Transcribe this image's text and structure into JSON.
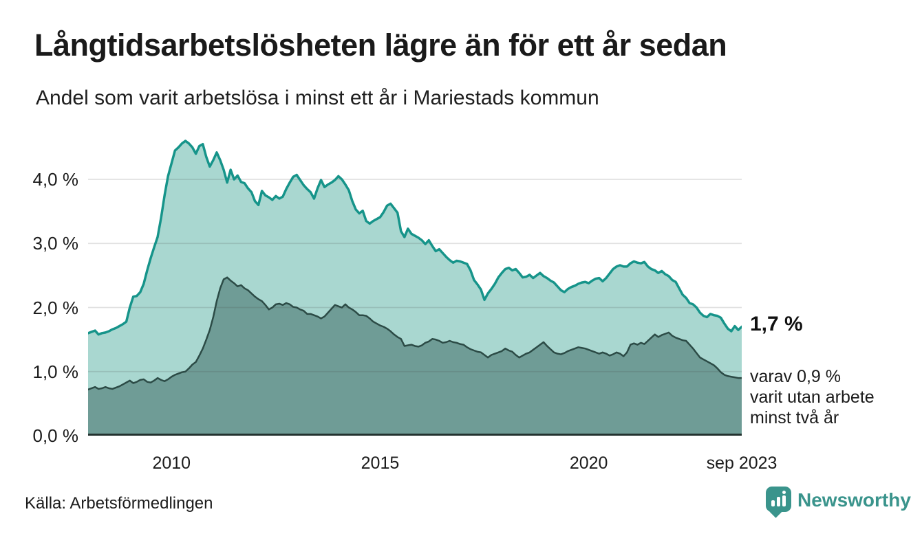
{
  "header": {
    "title": "Långtidsarbetslösheten lägre än för ett år sedan",
    "subtitle": "Andel som varit arbetslösa i minst ett år i Mariestads kommun"
  },
  "annotations": {
    "latest_value_label": "1,7 %",
    "note": "varav 0,9 %\nvarit utan arbete\nminst två år"
  },
  "footer": {
    "source": "Källa: Arbetsförmedlingen",
    "brand": "Newsworthy",
    "brand_color": "#3a948c",
    "brand_icon": "bar-chart-badge-icon"
  },
  "chart_data": {
    "type": "area",
    "title": "Långtidsarbetslösheten lägre än för ett år sedan",
    "subtitle": "Andel som varit arbetslösa i minst ett år i Mariestads kommun",
    "unit": "%",
    "xlabel": "",
    "ylabel": "",
    "ylim": [
      0,
      4.676
    ],
    "grid": true,
    "y_ticks": [
      {
        "label": "0,0 %",
        "value": 0
      },
      {
        "label": "1,0 %",
        "value": 1
      },
      {
        "label": "2,0 %",
        "value": 2
      },
      {
        "label": "3,0 %",
        "value": 3
      },
      {
        "label": "4,0 %",
        "value": 4
      }
    ],
    "x_ticks": [
      {
        "label": "2010",
        "index": 24
      },
      {
        "label": "2015",
        "index": 84
      },
      {
        "label": "2020",
        "index": 144
      },
      {
        "label": "sep 2023",
        "index": 188
      }
    ],
    "colors": {
      "gridline": "rgba(70,70,70,0.16)",
      "baseline": "#23322f"
    },
    "series": [
      {
        "name": "Arbetslösa minst ett år",
        "latest_label": "1,7 %",
        "latest_value": 1.7,
        "fill": "#a9d7d0",
        "stroke": "#16948a",
        "stroke_width": 3.5,
        "values": [
          1.6,
          1.62,
          1.64,
          1.58,
          1.6,
          1.61,
          1.63,
          1.66,
          1.68,
          1.71,
          1.74,
          1.78,
          2.0,
          2.17,
          2.18,
          2.24,
          2.37,
          2.58,
          2.77,
          2.94,
          3.1,
          3.4,
          3.75,
          4.05,
          4.25,
          4.45,
          4.5,
          4.56,
          4.6,
          4.56,
          4.5,
          4.4,
          4.52,
          4.55,
          4.35,
          4.2,
          4.3,
          4.42,
          4.3,
          4.15,
          3.95,
          4.15,
          4.0,
          4.06,
          3.96,
          3.94,
          3.86,
          3.8,
          3.66,
          3.6,
          3.82,
          3.75,
          3.72,
          3.68,
          3.74,
          3.7,
          3.73,
          3.85,
          3.95,
          4.04,
          4.07,
          3.99,
          3.91,
          3.85,
          3.8,
          3.7,
          3.86,
          3.99,
          3.88,
          3.92,
          3.95,
          3.99,
          4.05,
          4.0,
          3.92,
          3.83,
          3.66,
          3.53,
          3.47,
          3.51,
          3.35,
          3.31,
          3.35,
          3.38,
          3.41,
          3.49,
          3.59,
          3.62,
          3.55,
          3.48,
          3.19,
          3.1,
          3.23,
          3.15,
          3.12,
          3.09,
          3.05,
          2.99,
          3.05,
          2.96,
          2.88,
          2.91,
          2.85,
          2.79,
          2.74,
          2.7,
          2.73,
          2.72,
          2.7,
          2.68,
          2.58,
          2.43,
          2.36,
          2.28,
          2.12,
          2.22,
          2.29,
          2.37,
          2.47,
          2.54,
          2.6,
          2.62,
          2.58,
          2.6,
          2.54,
          2.47,
          2.48,
          2.51,
          2.46,
          2.5,
          2.54,
          2.49,
          2.46,
          2.42,
          2.39,
          2.33,
          2.27,
          2.24,
          2.29,
          2.32,
          2.34,
          2.37,
          2.39,
          2.4,
          2.38,
          2.42,
          2.45,
          2.46,
          2.41,
          2.46,
          2.53,
          2.6,
          2.64,
          2.66,
          2.64,
          2.64,
          2.69,
          2.72,
          2.7,
          2.69,
          2.71,
          2.64,
          2.6,
          2.58,
          2.54,
          2.57,
          2.52,
          2.49,
          2.43,
          2.4,
          2.3,
          2.2,
          2.15,
          2.07,
          2.05,
          2.0,
          1.92,
          1.87,
          1.85,
          1.9,
          1.88,
          1.87,
          1.84,
          1.75,
          1.67,
          1.63,
          1.71,
          1.65,
          1.7
        ]
      },
      {
        "name": "varav utan arbete minst två år",
        "latest_label": "varav 0,9 %",
        "latest_value": 0.9,
        "fill": "#6f9c96",
        "stroke": "#2c4b46",
        "stroke_width": 2.5,
        "values": [
          0.72,
          0.74,
          0.76,
          0.73,
          0.74,
          0.76,
          0.74,
          0.73,
          0.75,
          0.77,
          0.8,
          0.83,
          0.86,
          0.82,
          0.84,
          0.87,
          0.88,
          0.84,
          0.83,
          0.86,
          0.9,
          0.87,
          0.85,
          0.88,
          0.92,
          0.95,
          0.97,
          0.99,
          1.0,
          1.05,
          1.11,
          1.15,
          1.25,
          1.36,
          1.5,
          1.65,
          1.85,
          2.1,
          2.3,
          2.44,
          2.47,
          2.42,
          2.38,
          2.33,
          2.35,
          2.3,
          2.27,
          2.22,
          2.17,
          2.13,
          2.1,
          2.04,
          1.97,
          2.0,
          2.05,
          2.06,
          2.04,
          2.07,
          2.05,
          2.01,
          2.0,
          1.97,
          1.95,
          1.9,
          1.9,
          1.88,
          1.86,
          1.83,
          1.86,
          1.92,
          1.98,
          2.04,
          2.02,
          2.0,
          2.05,
          2.0,
          1.97,
          1.93,
          1.88,
          1.88,
          1.87,
          1.83,
          1.78,
          1.75,
          1.72,
          1.7,
          1.67,
          1.63,
          1.58,
          1.54,
          1.51,
          1.4,
          1.41,
          1.42,
          1.4,
          1.39,
          1.41,
          1.45,
          1.47,
          1.51,
          1.5,
          1.48,
          1.45,
          1.46,
          1.48,
          1.46,
          1.45,
          1.43,
          1.42,
          1.38,
          1.35,
          1.33,
          1.31,
          1.3,
          1.26,
          1.22,
          1.26,
          1.28,
          1.3,
          1.32,
          1.36,
          1.33,
          1.31,
          1.26,
          1.22,
          1.25,
          1.28,
          1.3,
          1.34,
          1.38,
          1.42,
          1.46,
          1.4,
          1.35,
          1.3,
          1.28,
          1.27,
          1.29,
          1.32,
          1.34,
          1.36,
          1.38,
          1.37,
          1.36,
          1.34,
          1.32,
          1.3,
          1.28,
          1.3,
          1.28,
          1.25,
          1.27,
          1.3,
          1.28,
          1.24,
          1.3,
          1.42,
          1.44,
          1.42,
          1.45,
          1.43,
          1.48,
          1.53,
          1.58,
          1.54,
          1.57,
          1.59,
          1.61,
          1.56,
          1.53,
          1.51,
          1.49,
          1.48,
          1.42,
          1.36,
          1.29,
          1.22,
          1.19,
          1.16,
          1.13,
          1.1,
          1.05,
          0.99,
          0.95,
          0.93,
          0.92,
          0.91,
          0.9,
          0.9
        ]
      }
    ],
    "legend_position": "none"
  }
}
